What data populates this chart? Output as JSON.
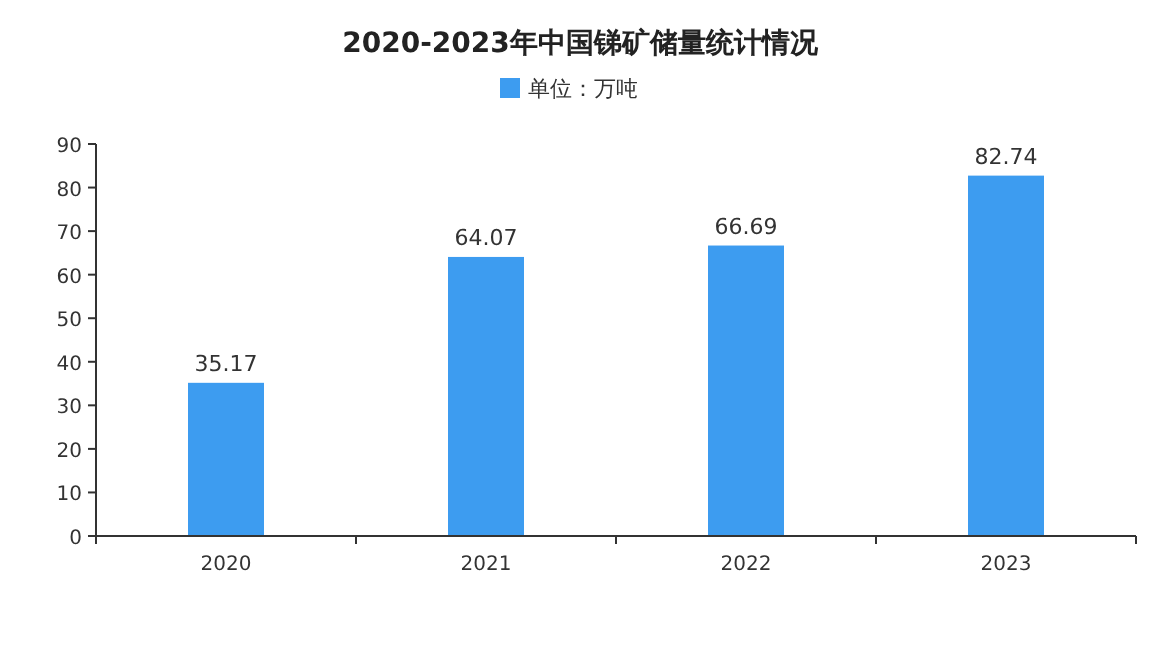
{
  "chart_data": {
    "type": "bar",
    "title": "2020-2023年中国锑矿储量统计情况",
    "categories": [
      "2020",
      "2021",
      "2022",
      "2023"
    ],
    "series": [
      {
        "name": "单位：万吨",
        "color": "#3d9cf0",
        "values": [
          35.17,
          64.07,
          66.69,
          82.74
        ]
      }
    ],
    "ylim": [
      0,
      90
    ],
    "yticks": [
      0,
      10,
      20,
      30,
      40,
      50,
      60,
      70,
      80,
      90
    ],
    "data_labels": true,
    "legend": "top"
  }
}
